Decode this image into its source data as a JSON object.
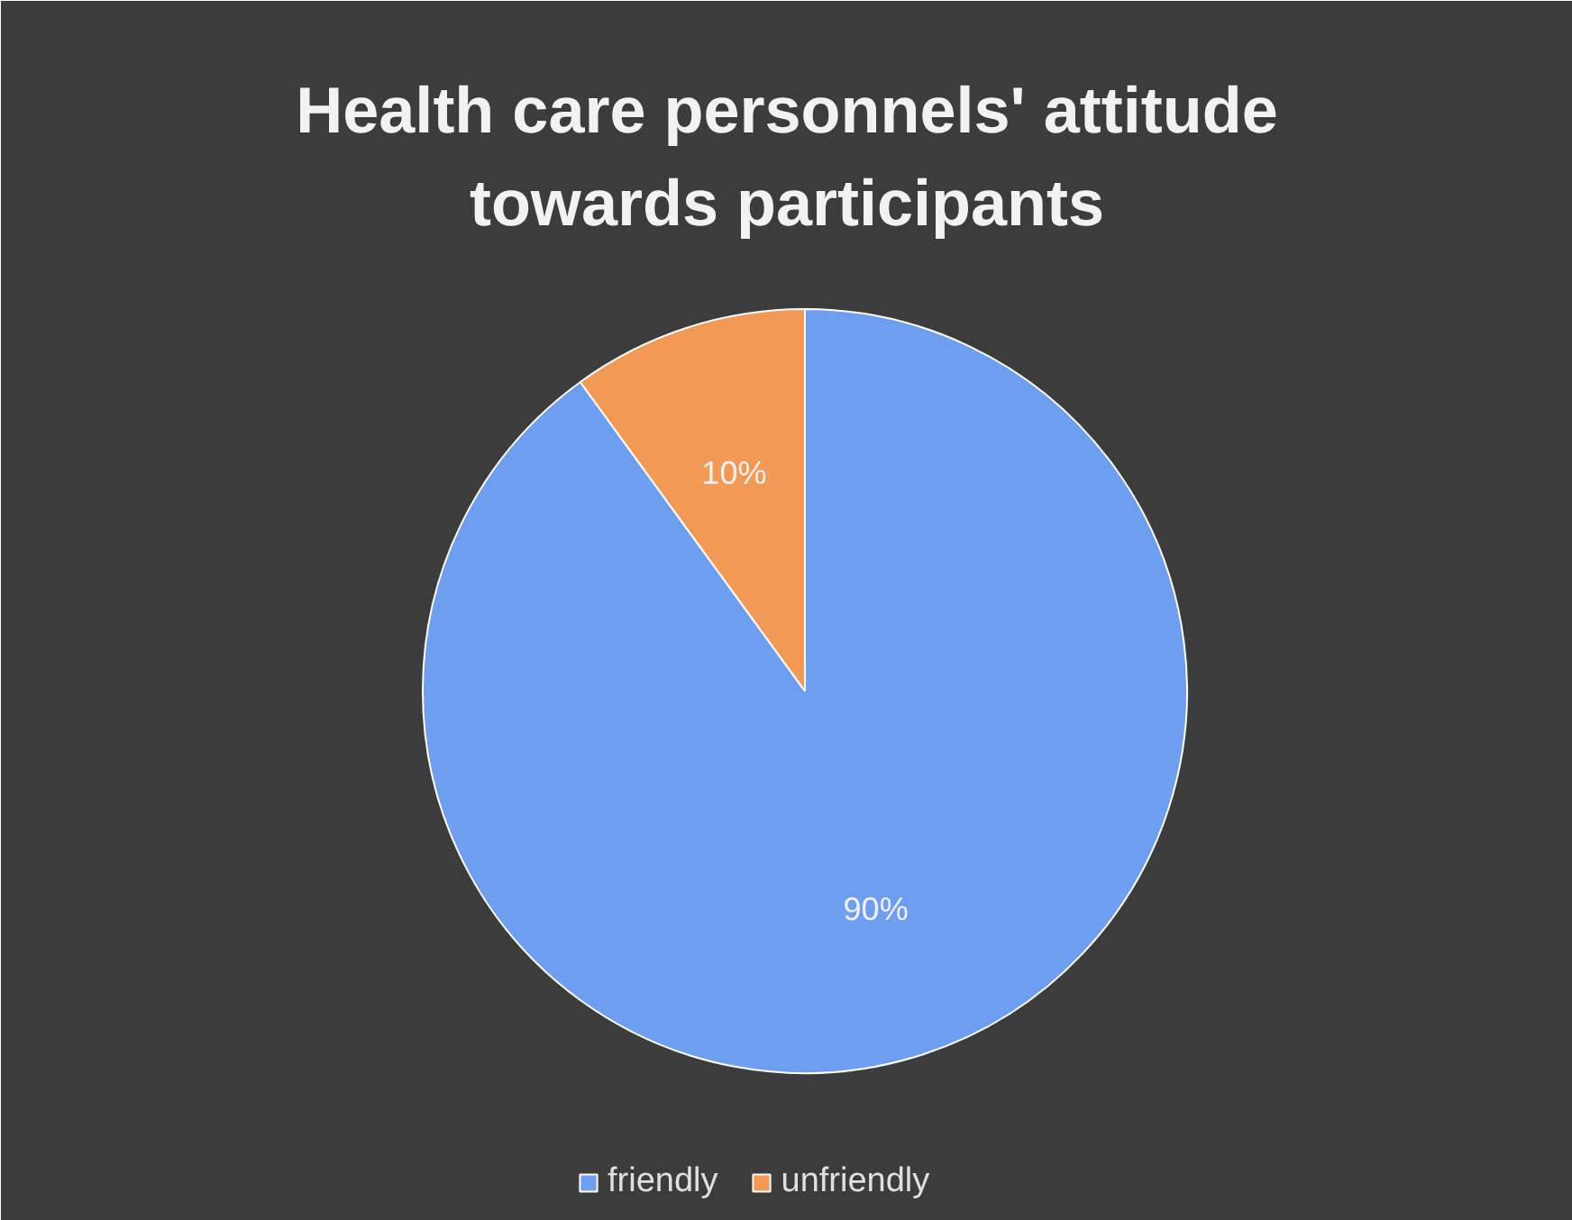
{
  "chart_data": {
    "type": "pie",
    "title": "Health care personnels' attitude towards participants",
    "categories": [
      "friendly",
      "unfriendly"
    ],
    "values": [
      90,
      10
    ],
    "colors": [
      "#6d9ef0",
      "#f29a55"
    ],
    "value_labels": [
      "90%",
      "10%"
    ],
    "legend": "bottom"
  }
}
